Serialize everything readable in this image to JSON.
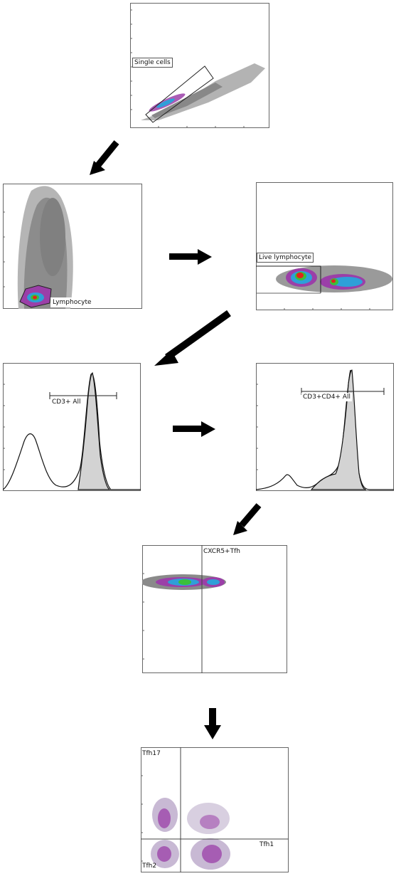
{
  "panels": {
    "single_cells": {
      "gate": "Single cells"
    },
    "lymphocyte": {
      "gate": "Lymphocyte"
    },
    "live_lymphocyte": {
      "gate": "Live lymphocyte"
    },
    "cd3": {
      "gate": "CD3+ All"
    },
    "cd3cd4": {
      "gate": "CD3+CD4+ All"
    },
    "cxcr5": {
      "gate": "CXCR5+Tfh"
    },
    "tfh_subsets": {
      "q1": "Tfh17",
      "q2": "Tfh1",
      "q3": "Tfh2"
    }
  },
  "colors": {
    "population": "#7f7f7f",
    "density_low": "#9b3fa8",
    "density_mid": "#2f9fd8",
    "density_high": "#e0261a",
    "histogram_fill": "#d3d3d3",
    "arrow": "#000000"
  }
}
